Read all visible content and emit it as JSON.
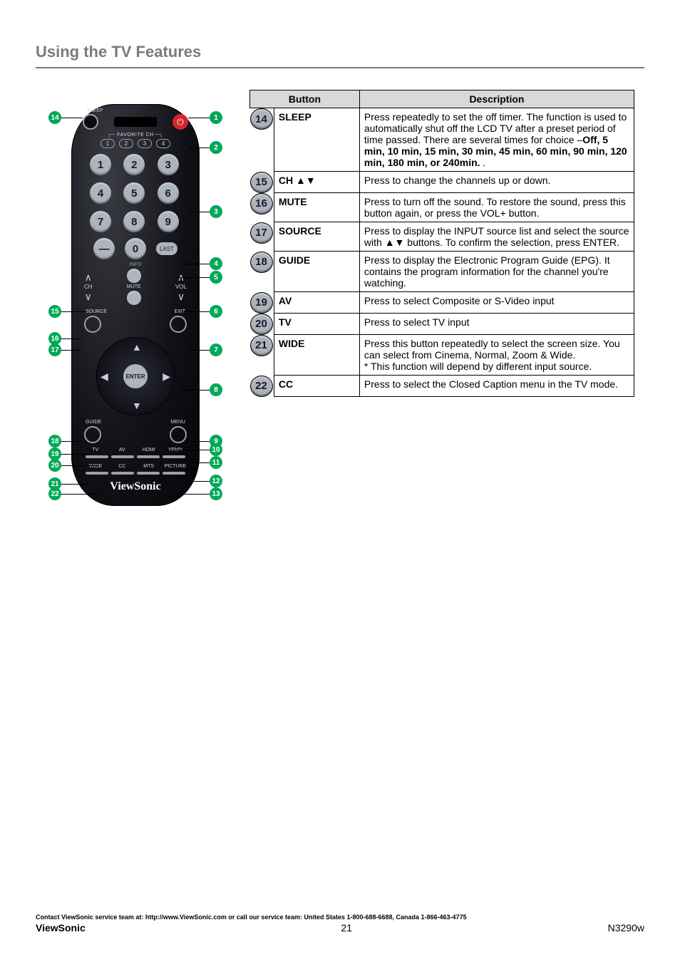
{
  "section_title": "Using the TV Features",
  "remote": {
    "sleep_label": "SLEEP",
    "power_glyph": "⏻",
    "favorite_label": "FAVORITE CH",
    "fav_keys": [
      "1",
      "2",
      "3",
      "4"
    ],
    "numbers": [
      "1",
      "2",
      "3",
      "4",
      "5",
      "6",
      "7",
      "8",
      "9"
    ],
    "dash": "—",
    "zero": "0",
    "last": "LAST",
    "info": "INFO",
    "ch": "CH",
    "mute": "MUTE",
    "vol": "VOL",
    "source": "SOURCE",
    "exit": "EXIT",
    "enter": "ENTER",
    "guide": "GUIDE",
    "menu": "MENU",
    "row1": [
      "TV",
      "AV",
      "HDMI",
      "YPbPr"
    ],
    "row2": [
      "WIDE",
      "CC",
      "MTS",
      "PICTURE"
    ],
    "logo": "ViewSonic"
  },
  "callouts": [
    "1",
    "2",
    "3",
    "4",
    "5",
    "6",
    "7",
    "8",
    "9",
    "10",
    "11",
    "12",
    "13",
    "14",
    "15",
    "16",
    "17",
    "18",
    "19",
    "20",
    "21",
    "22"
  ],
  "table": {
    "head_button": "Button",
    "head_desc": "Description",
    "rows": [
      {
        "n": "14",
        "name": "SLEEP",
        "desc_pre": "Press repeatedly to set the off timer. The function is used to automatically shut off the LCD TV after a preset period of time passed. There are several times for choice –",
        "desc_bold": "Off, 5 min, 10 min, 15 min, 30 min, 45 min, 60 min, 90 min, 120 min, 180 min, or 240min.",
        "desc_post": "\n."
      },
      {
        "n": "15",
        "name": "CH ▲▼",
        "desc": "Press to change the channels up or down."
      },
      {
        "n": "16",
        "name": "MUTE",
        "desc": "Press to turn off the sound. To restore the sound, press this button again, or press the VOL+ button."
      },
      {
        "n": "17",
        "name": "SOURCE",
        "desc": "Press to display the INPUT source list and select the source with ▲▼ buttons. To confirm the selection, press ENTER."
      },
      {
        "n": "18",
        "name": "GUIDE",
        "desc": "Press to display the Electronic Program Guide (EPG). It contains the program information for the channel you're watching."
      },
      {
        "n": "19",
        "name": "AV",
        "desc": "Press to select Composite or S-Video input"
      },
      {
        "n": "20",
        "name": "TV",
        "desc": "Press to select TV input"
      },
      {
        "n": "21",
        "name": "WIDE",
        "desc": "Press this button repeatedly to select the screen size. You can select from Cinema, Normal, Zoom & Wide.\n* This function will depend by different input source."
      },
      {
        "n": "22",
        "name": "CC",
        "desc": "Press to select the Closed Caption menu in the TV mode."
      }
    ]
  },
  "footer": {
    "contact": "Contact ViewSonic service team at: http://www.ViewSonic.com or call our service team: United States 1-800-688-6688, Canada 1-866-463-4775",
    "brand": "ViewSonic",
    "page": "21",
    "model": "N3290w"
  }
}
